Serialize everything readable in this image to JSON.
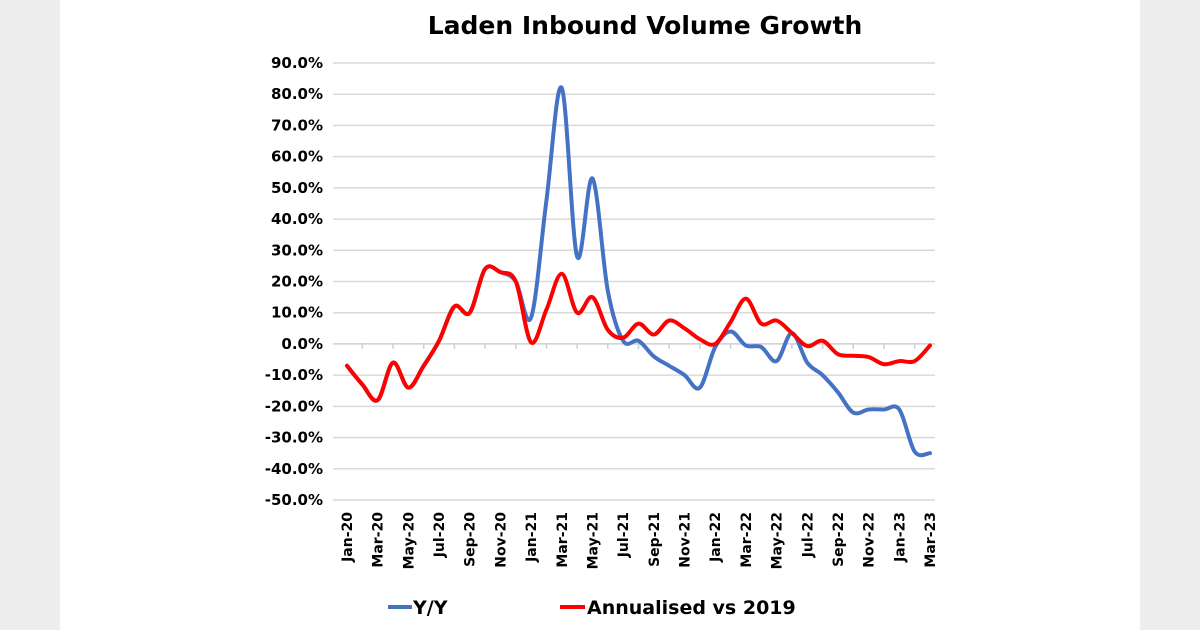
{
  "chart_data": {
    "type": "line",
    "title": "Laden Inbound Volume Growth",
    "xlabel": "",
    "ylabel": "",
    "ylim": [
      -50,
      90
    ],
    "y_ticks": [
      "90.0%",
      "80.0%",
      "70.0%",
      "60.0%",
      "50.0%",
      "40.0%",
      "30.0%",
      "20.0%",
      "10.0%",
      "0.0%",
      "-10.0%",
      "-20.0%",
      "-30.0%",
      "-40.0%",
      "-50.0%"
    ],
    "y_tick_values": [
      90,
      80,
      70,
      60,
      50,
      40,
      30,
      20,
      10,
      0,
      -10,
      -20,
      -30,
      -40,
      -50
    ],
    "grid": true,
    "legend_position": "bottom",
    "x": [
      "Jan-20",
      "Feb-20",
      "Mar-20",
      "Apr-20",
      "May-20",
      "Jun-20",
      "Jul-20",
      "Aug-20",
      "Sep-20",
      "Oct-20",
      "Nov-20",
      "Dec-20",
      "Jan-21",
      "Feb-21",
      "Mar-21",
      "Apr-21",
      "May-21",
      "Jun-21",
      "Jul-21",
      "Aug-21",
      "Sep-21",
      "Oct-21",
      "Nov-21",
      "Dec-21",
      "Jan-22",
      "Feb-22",
      "Mar-22",
      "Apr-22",
      "May-22",
      "Jun-22",
      "Jul-22",
      "Aug-22",
      "Sep-22",
      "Oct-22",
      "Nov-22",
      "Dec-22",
      "Jan-23",
      "Feb-23",
      "Mar-23"
    ],
    "x_tick_labels": [
      "Jan-20",
      "Mar-20",
      "May-20",
      "Jul-20",
      "Sep-20",
      "Nov-20",
      "Jan-21",
      "Mar-21",
      "May-21",
      "Jul-21",
      "Sep-21",
      "Nov-21",
      "Jan-22",
      "Mar-22",
      "May-22",
      "Jul-22",
      "Sep-22",
      "Nov-22",
      "Jan-23",
      "Mar-23"
    ],
    "series": [
      {
        "name": "Y/Y",
        "color": "#4472c4",
        "values": [
          -7,
          -13,
          -18,
          -6,
          -14,
          -7,
          1,
          12,
          10,
          24,
          23,
          20,
          8.5,
          46,
          82,
          28,
          53,
          17,
          1,
          1,
          -4,
          -7,
          -10,
          -14,
          -1,
          4,
          -0.5,
          -1,
          -5.5,
          3.5,
          -6,
          -10,
          -15.5,
          -22,
          -21,
          -21,
          -21,
          -34.5,
          -35
        ]
      },
      {
        "name": "Annualised vs 2019",
        "color": "#ff0000",
        "values": [
          -7,
          -13,
          -18,
          -6,
          -14,
          -7,
          1,
          12,
          10,
          24,
          23,
          20,
          0.5,
          11,
          22.5,
          10,
          15,
          4.5,
          2,
          6.5,
          3,
          7.5,
          5,
          1.5,
          0,
          7,
          14.5,
          6.5,
          7.5,
          3.5,
          -0.7,
          1,
          -3.3,
          -3.8,
          -4.2,
          -6.5,
          -5.5,
          -5.5,
          -0.5
        ]
      }
    ]
  }
}
